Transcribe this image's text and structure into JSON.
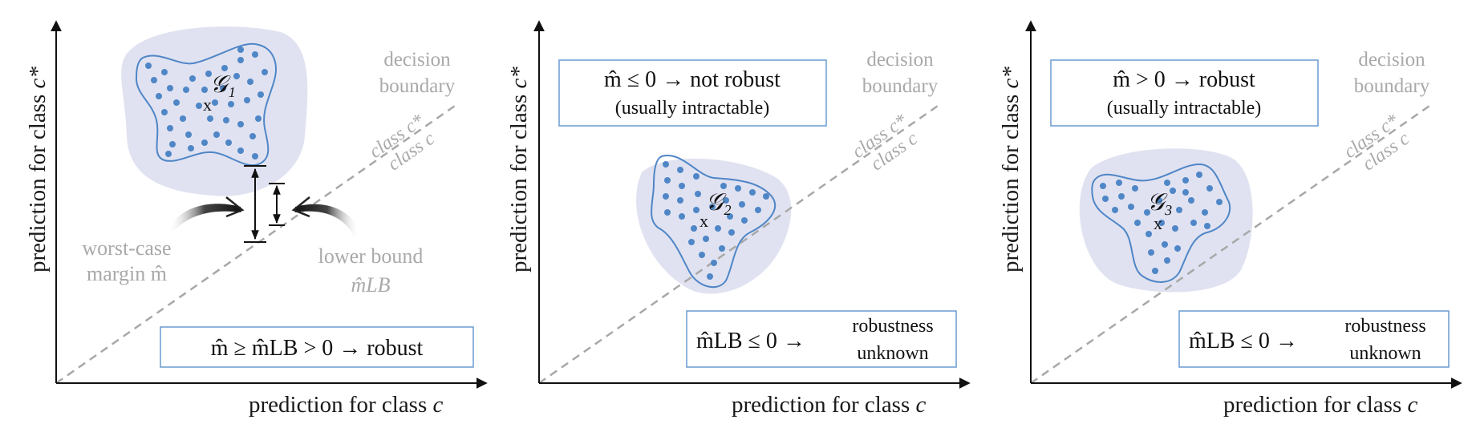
{
  "colors": {
    "blob_fill": "#e0e2f1",
    "region_stroke": "#4f86c6",
    "dots": "#4f86c6",
    "box_stroke": "#6a9bd0",
    "text_gray": "#a9a9a9",
    "boundary": "#a8a8a8"
  },
  "panels": [
    {
      "xlabel_prefix": "prediction for class ",
      "xlabel_var": "c",
      "ylabel_prefix": "prediction for class ",
      "ylabel_var": "c*",
      "boundary_label_1": "decision",
      "boundary_label_2": "boundary",
      "above_label": "class c*",
      "below_label": "class c",
      "region_label": "𝒢₁",
      "center_mark": "x",
      "worst_case_1": "worst-case",
      "worst_case_2": "margin m̂",
      "lower_bound_1": "lower bound",
      "lower_bound_2": "m̂LB",
      "box_text": "m̂ ≥ m̂LB > 0  →  robust"
    },
    {
      "xlabel_prefix": "prediction for class ",
      "xlabel_var": "c",
      "ylabel_prefix": "prediction for class ",
      "ylabel_var": "c*",
      "boundary_label_1": "decision",
      "boundary_label_2": "boundary",
      "above_label": "class c*",
      "below_label": "class c",
      "region_label": "𝒢₂",
      "center_mark": "x",
      "top_box_line1": "m̂ ≤ 0  →  not robust",
      "top_box_line2": "(usually intractable)",
      "bottom_box_main": "m̂LB ≤ 0 →",
      "bottom_box_line1": "robustness",
      "bottom_box_line2": "unknown"
    },
    {
      "xlabel_prefix": "prediction for class ",
      "xlabel_var": "c",
      "ylabel_prefix": "prediction for class ",
      "ylabel_var": "c*",
      "boundary_label_1": "decision",
      "boundary_label_2": "boundary",
      "above_label": "class c*",
      "below_label": "class c",
      "region_label": "𝒢₃",
      "center_mark": "x",
      "top_box_line1": "m̂ > 0  →  robust",
      "top_box_line2": "(usually intractable)",
      "bottom_box_main": "m̂LB ≤ 0 →",
      "bottom_box_line1": "robustness",
      "bottom_box_line2": "unknown"
    }
  ]
}
